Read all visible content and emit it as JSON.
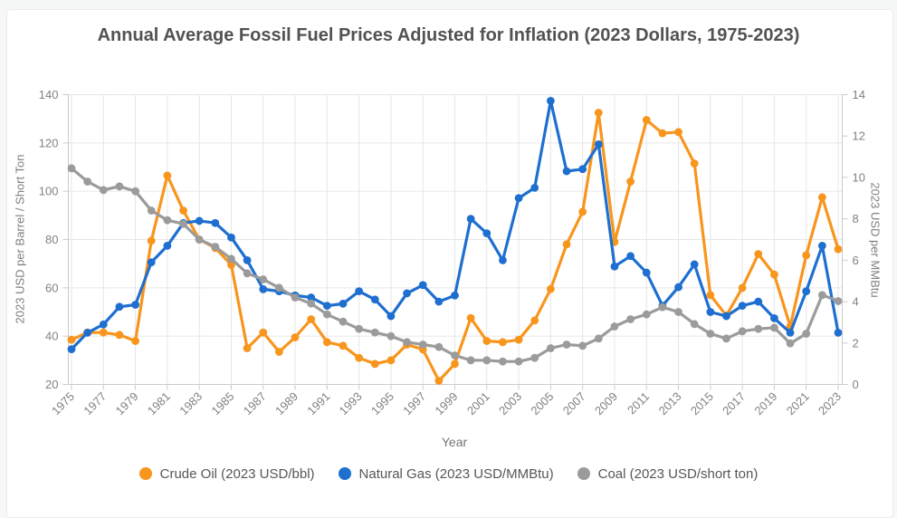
{
  "page": {
    "background_color": "#f6f7f7",
    "card_color": "#ffffff"
  },
  "chart_data": {
    "type": "line",
    "title": "Annual Average Fossil Fuel Prices Adjusted for Inflation (2023 Dollars, 1975-2023)",
    "x_label": "Year",
    "y_left_label": "2023 USD per Barrel / Short Ton",
    "y_right_label": "2023 USD per MMBtu",
    "grid": true,
    "legend_position": "bottom",
    "x": [
      1975,
      1976,
      1977,
      1978,
      1979,
      1980,
      1981,
      1982,
      1983,
      1984,
      1985,
      1986,
      1987,
      1988,
      1989,
      1990,
      1991,
      1992,
      1993,
      1994,
      1995,
      1996,
      1997,
      1998,
      1999,
      2000,
      2001,
      2002,
      2003,
      2004,
      2005,
      2006,
      2007,
      2008,
      2009,
      2010,
      2011,
      2012,
      2013,
      2014,
      2015,
      2016,
      2017,
      2018,
      2019,
      2020,
      2021,
      2022,
      2023
    ],
    "x_tick_labels": [
      1975,
      1977,
      1979,
      1981,
      1983,
      1985,
      1987,
      1989,
      1991,
      1993,
      1995,
      1997,
      1999,
      2001,
      2003,
      2005,
      2007,
      2009,
      2011,
      2013,
      2015,
      2017,
      2019,
      2021,
      2023
    ],
    "y_left": {
      "min": 20,
      "max": 140,
      "ticks": [
        20,
        40,
        60,
        80,
        100,
        120,
        140
      ]
    },
    "y_right": {
      "min": 0,
      "max": 14,
      "ticks": [
        0,
        2,
        4,
        6,
        8,
        10,
        12,
        14
      ]
    },
    "series": [
      {
        "name": "Crude Oil (2023 USD/bbl)",
        "axis": "left",
        "color": "#F8951D",
        "values": [
          38.5,
          41.5,
          41.5,
          40.5,
          38,
          79.5,
          106.5,
          92,
          80,
          76.5,
          69.5,
          35,
          41.5,
          33.5,
          39.5,
          47,
          37.5,
          36,
          31,
          28.5,
          30,
          36.5,
          34.5,
          21.5,
          28.5,
          47.5,
          38,
          37.5,
          38.5,
          46.5,
          59.5,
          78,
          91.5,
          132.5,
          79,
          104,
          129.5,
          124,
          124.5,
          111.5,
          57,
          48.5,
          60,
          74,
          65.5,
          44,
          73.5,
          97.5,
          76
        ]
      },
      {
        "name": "Natural Gas (2023 USD/MMBtu)",
        "axis": "right",
        "color": "#1E6FD0",
        "values": [
          1.7,
          2.5,
          2.9,
          3.75,
          3.85,
          5.9,
          6.7,
          7.8,
          7.9,
          7.8,
          7.1,
          6.0,
          4.6,
          4.5,
          4.3,
          4.2,
          3.8,
          3.9,
          4.5,
          4.1,
          3.3,
          4.4,
          4.8,
          4.0,
          4.3,
          8.0,
          7.3,
          6.0,
          9.0,
          9.5,
          13.7,
          10.3,
          10.4,
          11.6,
          5.7,
          6.2,
          5.4,
          3.8,
          4.7,
          5.8,
          3.5,
          3.3,
          3.8,
          4.0,
          3.2,
          2.5,
          4.5,
          6.7,
          2.5
        ]
      },
      {
        "name": "Coal (2023 USD/short ton)",
        "axis": "left",
        "color": "#9B9B9B",
        "values": [
          109.5,
          104,
          100.5,
          102,
          100,
          92,
          88,
          86.5,
          80,
          77,
          72,
          66,
          63.5,
          60,
          56,
          53.5,
          49,
          46,
          43,
          41.5,
          40,
          37.5,
          36.5,
          35.5,
          32,
          30,
          30,
          29.5,
          29.5,
          31,
          35,
          36.5,
          36,
          39,
          44,
          47,
          49,
          52,
          50,
          45,
          41,
          39,
          42,
          43,
          43.5,
          37,
          41,
          57,
          54.5
        ]
      }
    ]
  }
}
